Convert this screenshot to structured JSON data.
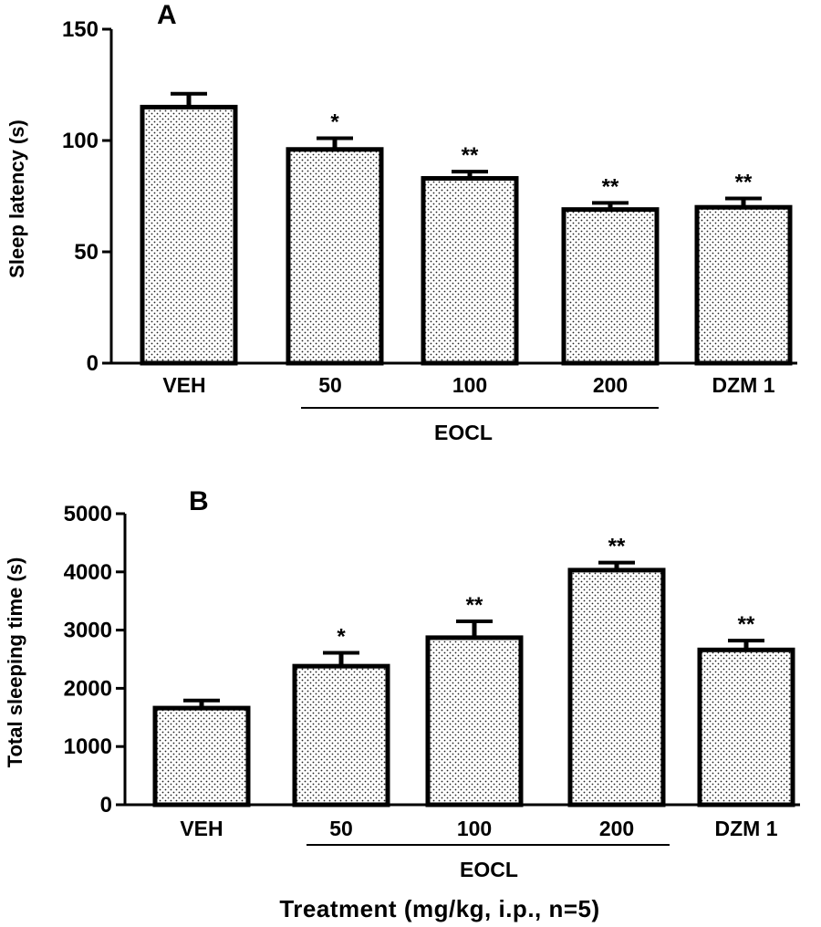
{
  "figure": {
    "xlabel": "Treatment (mg/kg, i.p., n=5)",
    "bar_fill": "#ffffff",
    "bar_pattern_color": "#222222",
    "stroke_color": "#000000"
  },
  "chart_data": [
    {
      "type": "bar",
      "panel": "A",
      "title": "",
      "ylabel": "Sleep latency (s)",
      "xlabel": "",
      "categories": [
        "VEH",
        "50",
        "100",
        "200",
        "DZM 1"
      ],
      "values": [
        115,
        96,
        83,
        69,
        70
      ],
      "errors": [
        6,
        5,
        3,
        3,
        4
      ],
      "significance": [
        "",
        "*",
        "**",
        "**",
        "**"
      ],
      "group_label": "EOCL",
      "group_categories": [
        "50",
        "100",
        "200"
      ],
      "ylim": [
        0,
        150
      ],
      "yticks": [
        0,
        50,
        100,
        150
      ],
      "grid": false,
      "legend": "none"
    },
    {
      "type": "bar",
      "panel": "B",
      "title": "",
      "ylabel": "Total sleeping time (s)",
      "xlabel": "Treatment (mg/kg, i.p., n=5)",
      "categories": [
        "VEH",
        "50",
        "100",
        "200",
        "DZM 1"
      ],
      "values": [
        1660,
        2380,
        2870,
        4030,
        2660
      ],
      "errors": [
        130,
        230,
        280,
        130,
        160
      ],
      "significance": [
        "",
        "*",
        "**",
        "**",
        "**"
      ],
      "group_label": "EOCL",
      "group_categories": [
        "50",
        "100",
        "200"
      ],
      "ylim": [
        0,
        5000
      ],
      "yticks": [
        0,
        1000,
        2000,
        3000,
        4000,
        5000
      ],
      "grid": false,
      "legend": "none"
    }
  ]
}
